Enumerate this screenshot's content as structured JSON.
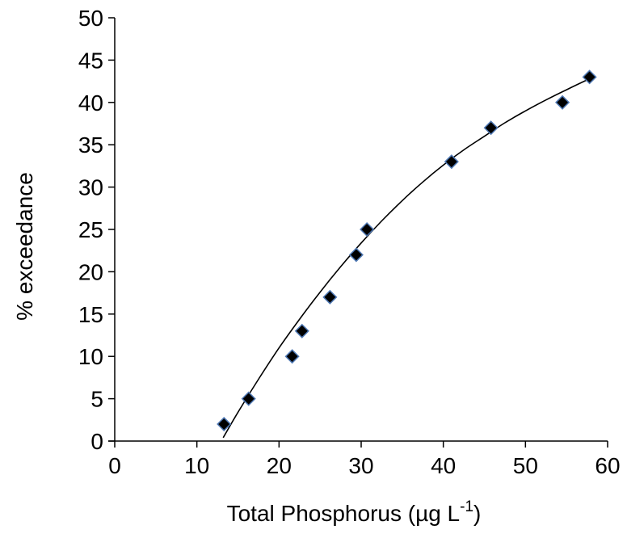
{
  "chart_data": {
    "type": "scatter",
    "title": "",
    "xlabel": "Total Phosphorus (µg L",
    "xlabel_superscript": "-1",
    "xlabel_suffix": ")",
    "ylabel": "% exceedance",
    "xlim": [
      0,
      60
    ],
    "ylim": [
      0,
      50
    ],
    "x_ticks": [
      0,
      10,
      20,
      30,
      40,
      50,
      60
    ],
    "y_ticks": [
      0,
      5,
      10,
      15,
      20,
      25,
      30,
      35,
      40,
      45,
      50
    ],
    "grid": false,
    "legend": "none",
    "series": [
      {
        "x": [
          13.3,
          16.3,
          21.6,
          22.8,
          26.2,
          29.4,
          30.7,
          41.0,
          45.8,
          54.5,
          57.8
        ],
        "y": [
          2,
          5,
          10,
          13,
          17,
          22,
          25,
          33,
          37,
          40,
          43
        ],
        "marker": "diamond",
        "marker_fill": "#000000",
        "marker_edge": "#4f79b5"
      }
    ],
    "trendline": {
      "type": "polynomial",
      "x": [
        13.2,
        15,
        17.5,
        20,
        22.5,
        25,
        27.5,
        30,
        32.5,
        35,
        37.5,
        40,
        42.5,
        45,
        47.5,
        50,
        52.5,
        55,
        57.8
      ],
      "y": [
        0.4,
        3.4,
        7.3,
        11.0,
        14.4,
        17.6,
        20.6,
        23.4,
        26.0,
        28.4,
        30.6,
        32.6,
        34.4,
        36.0,
        37.6,
        39.0,
        40.3,
        41.5,
        42.8
      ],
      "color": "#000000"
    }
  }
}
